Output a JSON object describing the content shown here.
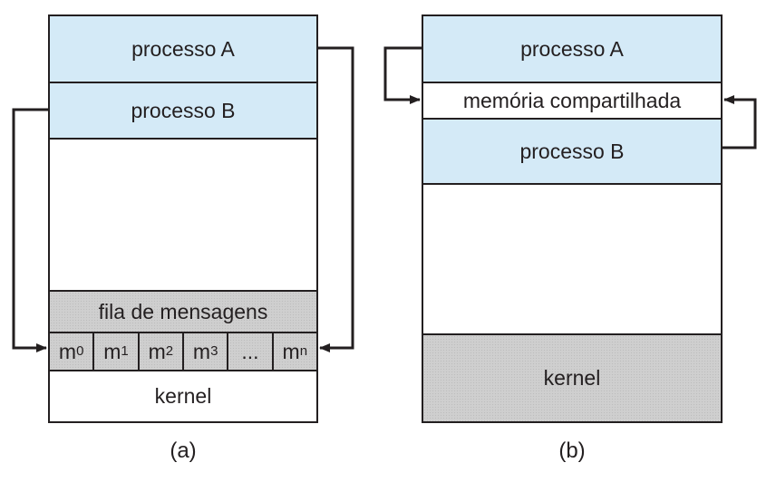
{
  "diagram_a": {
    "process_a": "processo A",
    "process_b": "processo B",
    "message_queue": "fila de mensagens",
    "messages": [
      {
        "base": "m",
        "sub": "0"
      },
      {
        "base": "m",
        "sub": "1"
      },
      {
        "base": "m",
        "sub": "2"
      },
      {
        "base": "m",
        "sub": "3"
      },
      {
        "base": "...",
        "sub": ""
      },
      {
        "base": "m",
        "sub": "n"
      }
    ],
    "kernel": "kernel",
    "caption": "(a)"
  },
  "diagram_b": {
    "process_a": "processo A",
    "shared_memory": "memória compartilhada",
    "process_b": "processo B",
    "kernel": "kernel",
    "caption": "(b)"
  },
  "colors": {
    "process_fill": "#d4eaf7",
    "kernel_fill": "#cfcfcf",
    "line": "#231f20"
  }
}
